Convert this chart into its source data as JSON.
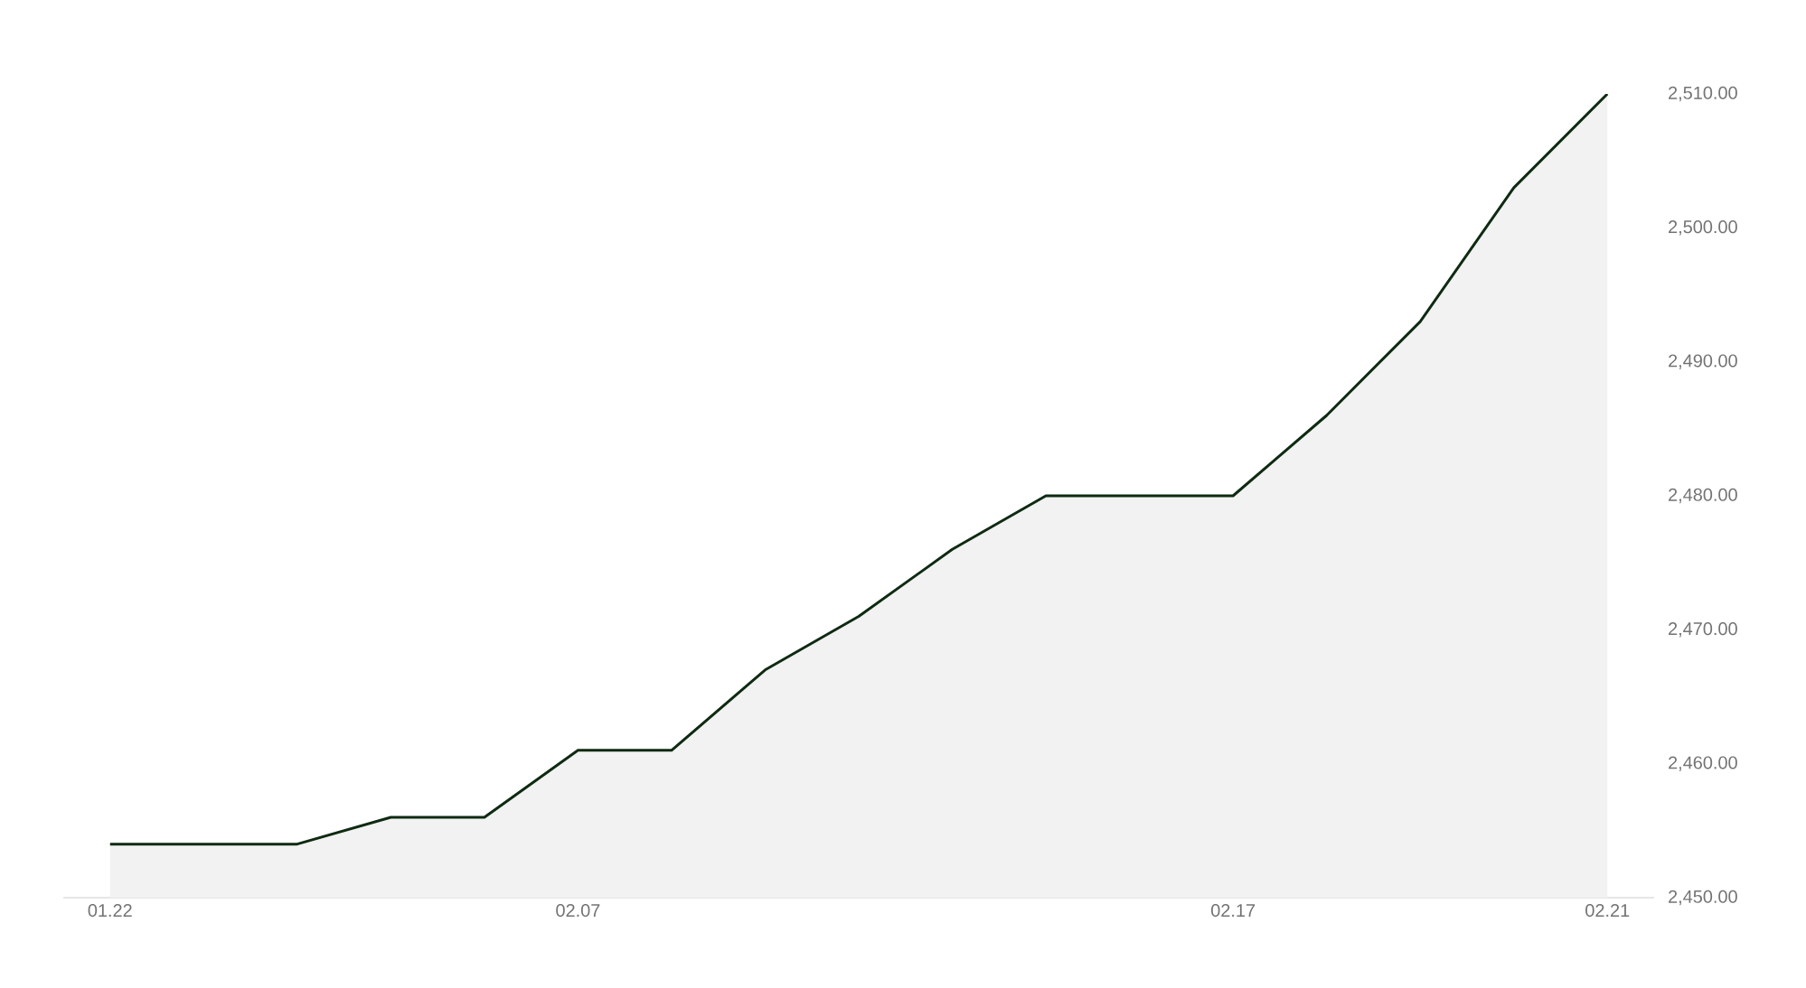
{
  "chart_data": {
    "type": "area",
    "categories": [
      "01.22",
      null,
      null,
      null,
      null,
      "02.07",
      null,
      null,
      null,
      null,
      null,
      null,
      "02.17",
      null,
      null,
      null,
      "02.21"
    ],
    "values": [
      2454,
      2454,
      2454,
      2456,
      2456,
      2461,
      2461,
      2467,
      2471,
      2476,
      2480,
      2480,
      2480,
      2486,
      2493,
      2503,
      2510
    ],
    "color": "#0f2a12",
    "ylim": [
      2450,
      2510
    ],
    "yticks": [
      {
        "value": 2450,
        "label": "2,450.00"
      },
      {
        "value": 2460,
        "label": "2,460.00"
      },
      {
        "value": 2470,
        "label": "2,470.00"
      },
      {
        "value": 2480,
        "label": "2,480.00"
      },
      {
        "value": 2490,
        "label": "2,490.00"
      },
      {
        "value": 2500,
        "label": "2,500.00"
      },
      {
        "value": 2510,
        "label": "2,510.00"
      }
    ]
  }
}
